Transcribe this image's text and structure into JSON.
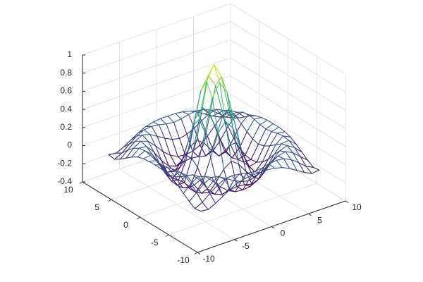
{
  "chart_data": {
    "type": "mesh3d",
    "x": [
      -8,
      -7,
      -6,
      -5,
      -4,
      -3,
      -2,
      -1,
      0,
      1,
      2,
      3,
      4,
      5,
      6,
      7,
      8
    ],
    "y": [
      -8,
      -7,
      -6,
      -5,
      -4,
      -3,
      -2,
      -1,
      0,
      1,
      2,
      3,
      4,
      5,
      6,
      7,
      8
    ],
    "z": [
      [
        -0.08,
        -0.09,
        -0.05,
        0.0,
        0.05,
        0.09,
        0.11,
        0.12,
        0.12,
        0.12,
        0.11,
        0.09,
        0.05,
        0.0,
        -0.05,
        -0.09,
        -0.08
      ],
      [
        -0.09,
        -0.05,
        0.02,
        0.08,
        0.12,
        0.13,
        0.12,
        0.1,
        0.09,
        0.1,
        0.12,
        0.13,
        0.12,
        0.08,
        0.02,
        -0.05,
        -0.09
      ],
      [
        -0.05,
        0.02,
        0.09,
        0.13,
        0.11,
        0.06,
        0.01,
        -0.03,
        -0.05,
        -0.03,
        0.01,
        0.06,
        0.11,
        0.13,
        0.09,
        0.02,
        -0.05
      ],
      [
        0.0,
        0.08,
        0.13,
        0.1,
        0.02,
        -0.07,
        -0.14,
        -0.18,
        -0.19,
        -0.18,
        -0.14,
        -0.07,
        0.02,
        0.1,
        0.13,
        0.08,
        0.0
      ],
      [
        0.05,
        0.12,
        0.11,
        0.02,
        -0.1,
        -0.19,
        -0.22,
        -0.2,
        -0.19,
        -0.2,
        -0.22,
        -0.19,
        -0.1,
        0.02,
        0.11,
        0.12,
        0.05
      ],
      [
        0.09,
        0.13,
        0.06,
        -0.07,
        -0.19,
        -0.21,
        -0.12,
        -0.01,
        0.05,
        -0.01,
        -0.12,
        -0.21,
        -0.19,
        -0.07,
        0.06,
        0.13,
        0.09
      ],
      [
        0.11,
        0.12,
        0.01,
        -0.14,
        -0.22,
        -0.12,
        0.11,
        0.35,
        0.45,
        0.35,
        0.11,
        -0.12,
        -0.22,
        -0.14,
        0.01,
        0.12,
        0.11
      ],
      [
        0.12,
        0.1,
        -0.03,
        -0.18,
        -0.2,
        -0.01,
        0.35,
        0.7,
        0.84,
        0.7,
        0.35,
        -0.01,
        -0.2,
        -0.18,
        -0.03,
        0.1,
        0.12
      ],
      [
        0.12,
        0.09,
        -0.05,
        -0.19,
        -0.19,
        0.05,
        0.45,
        0.84,
        1,
        0.84,
        0.45,
        0.05,
        -0.19,
        -0.19,
        -0.05,
        0.09,
        0.12
      ],
      [
        0.12,
        0.1,
        -0.03,
        -0.18,
        -0.2,
        -0.01,
        0.35,
        0.7,
        0.84,
        0.7,
        0.35,
        -0.01,
        -0.2,
        -0.18,
        -0.03,
        0.1,
        0.12
      ],
      [
        0.11,
        0.12,
        0.01,
        -0.14,
        -0.22,
        -0.12,
        0.11,
        0.35,
        0.45,
        0.35,
        0.11,
        -0.12,
        -0.22,
        -0.14,
        0.01,
        0.12,
        0.11
      ],
      [
        0.09,
        0.13,
        0.06,
        -0.07,
        -0.19,
        -0.21,
        -0.12,
        -0.01,
        0.05,
        -0.01,
        -0.12,
        -0.21,
        -0.19,
        -0.07,
        0.06,
        0.13,
        0.09
      ],
      [
        0.05,
        0.12,
        0.11,
        0.02,
        -0.1,
        -0.19,
        -0.22,
        -0.2,
        -0.19,
        -0.2,
        -0.22,
        -0.19,
        -0.1,
        0.02,
        0.11,
        0.12,
        0.05
      ],
      [
        0.0,
        0.08,
        0.13,
        0.1,
        0.02,
        -0.07,
        -0.14,
        -0.18,
        -0.19,
        -0.18,
        -0.14,
        -0.07,
        0.02,
        0.1,
        0.13,
        0.08,
        0.0
      ],
      [
        -0.05,
        0.02,
        0.09,
        0.13,
        0.11,
        0.06,
        0.01,
        -0.03,
        -0.05,
        -0.03,
        0.01,
        0.06,
        0.11,
        0.13,
        0.09,
        0.02,
        -0.05
      ],
      [
        -0.09,
        -0.05,
        0.02,
        0.08,
        0.12,
        0.13,
        0.12,
        0.1,
        0.09,
        0.1,
        0.12,
        0.13,
        0.12,
        0.08,
        0.02,
        -0.05,
        -0.09
      ],
      [
        -0.08,
        -0.09,
        -0.05,
        0.0,
        0.05,
        0.09,
        0.11,
        0.12,
        0.12,
        0.12,
        0.11,
        0.09,
        0.05,
        0.0,
        -0.05,
        -0.09,
        -0.08
      ]
    ],
    "xlim": [
      -10,
      10
    ],
    "ylim": [
      -10,
      10
    ],
    "zlim": [
      -0.4,
      1
    ],
    "xticks": [
      -10,
      -5,
      0,
      5,
      10
    ],
    "yticks": [
      -10,
      -5,
      0,
      5,
      10
    ],
    "zticks": [
      -0.4,
      -0.2,
      0,
      0.2,
      0.4,
      0.6,
      0.8,
      1
    ],
    "colormap": [
      "#440154",
      "#3b528b",
      "#21908d",
      "#5dc963",
      "#fde725"
    ],
    "grid": true
  }
}
